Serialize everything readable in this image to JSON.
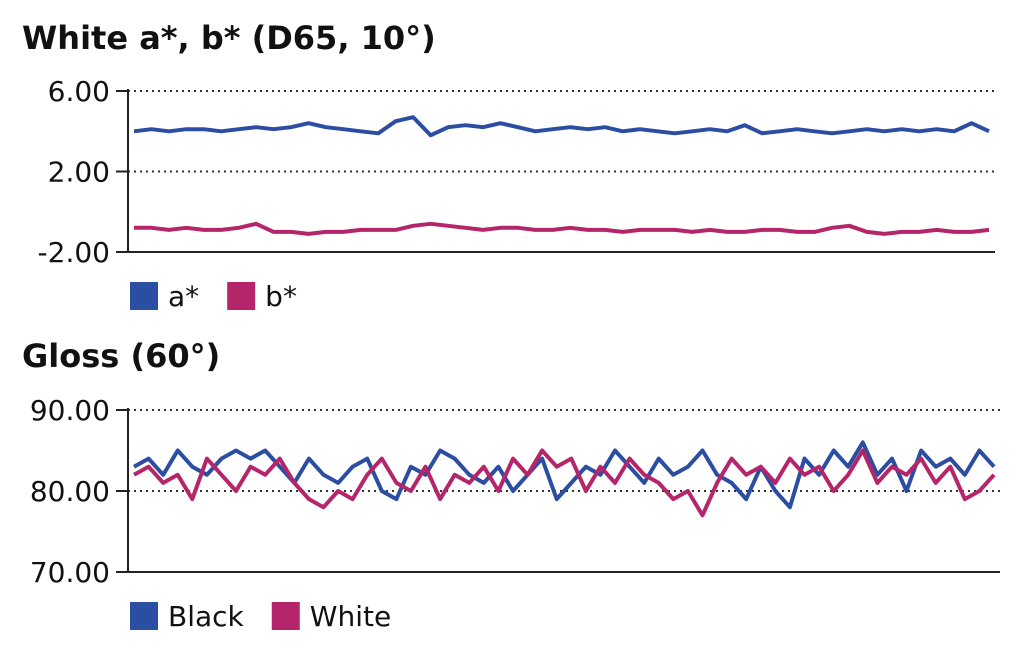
{
  "chart_data": [
    {
      "type": "line",
      "title": "White a*, b* (D65, 10°)",
      "ylim": [
        -2,
        6
      ],
      "yticks": [
        {
          "value": -2,
          "label": "-2.00"
        },
        {
          "value": 2,
          "label": "2.00"
        },
        {
          "value": 6,
          "label": "6.00"
        }
      ],
      "grid": true,
      "series": [
        {
          "name": "a*",
          "color": "#2b4ea2",
          "values": [
            4.0,
            4.1,
            4.0,
            4.1,
            4.1,
            4.0,
            4.1,
            4.2,
            4.1,
            4.2,
            4.4,
            4.2,
            4.1,
            4.0,
            3.9,
            4.5,
            4.7,
            3.8,
            4.2,
            4.3,
            4.2,
            4.4,
            4.2,
            4.0,
            4.1,
            4.2,
            4.1,
            4.2,
            4.0,
            4.1,
            4.0,
            3.9,
            4.0,
            4.1,
            4.0,
            4.3,
            3.9,
            4.0,
            4.1,
            4.0,
            3.9,
            4.0,
            4.1,
            4.0,
            4.1,
            4.0,
            4.1,
            4.0,
            4.4,
            4.0
          ]
        },
        {
          "name": "b*",
          "color": "#b5256a",
          "values": [
            -0.8,
            -0.8,
            -0.9,
            -0.8,
            -0.9,
            -0.9,
            -0.8,
            -0.6,
            -1.0,
            -1.0,
            -1.1,
            -1.0,
            -1.0,
            -0.9,
            -0.9,
            -0.9,
            -0.7,
            -0.6,
            -0.7,
            -0.8,
            -0.9,
            -0.8,
            -0.8,
            -0.9,
            -0.9,
            -0.8,
            -0.9,
            -0.9,
            -1.0,
            -0.9,
            -0.9,
            -0.9,
            -1.0,
            -0.9,
            -1.0,
            -1.0,
            -0.9,
            -0.9,
            -1.0,
            -1.0,
            -0.8,
            -0.7,
            -1.0,
            -1.1,
            -1.0,
            -1.0,
            -0.9,
            -1.0,
            -1.0,
            -0.9
          ]
        }
      ]
    },
    {
      "type": "line",
      "title": "Gloss (60°)",
      "ylim": [
        70,
        90
      ],
      "yticks": [
        {
          "value": 70,
          "label": "70.00"
        },
        {
          "value": 80,
          "label": "80.00"
        },
        {
          "value": 90,
          "label": "90.00"
        }
      ],
      "grid": true,
      "series": [
        {
          "name": "Black",
          "color": "#2b4ea2",
          "values": [
            83,
            84,
            82,
            85,
            83,
            82,
            84,
            85,
            84,
            85,
            83,
            81,
            84,
            82,
            81,
            83,
            84,
            80,
            79,
            83,
            82,
            85,
            84,
            82,
            81,
            83,
            80,
            82,
            84,
            79,
            81,
            83,
            82,
            85,
            83,
            81,
            84,
            82,
            83,
            85,
            82,
            81,
            79,
            83,
            80,
            78,
            84,
            82,
            85,
            83,
            86,
            82,
            84,
            80,
            85,
            83,
            84,
            82,
            85,
            83
          ]
        },
        {
          "name": "White",
          "color": "#b5256a",
          "values": [
            82,
            83,
            81,
            82,
            79,
            84,
            82,
            80,
            83,
            82,
            84,
            81,
            79,
            78,
            80,
            79,
            82,
            84,
            81,
            80,
            83,
            79,
            82,
            81,
            83,
            80,
            84,
            82,
            85,
            83,
            84,
            80,
            83,
            81,
            84,
            82,
            81,
            79,
            80,
            77,
            81,
            84,
            82,
            83,
            81,
            84,
            82,
            83,
            80,
            82,
            85,
            81,
            83,
            82,
            84,
            81,
            83,
            79,
            80,
            82
          ]
        }
      ]
    }
  ]
}
